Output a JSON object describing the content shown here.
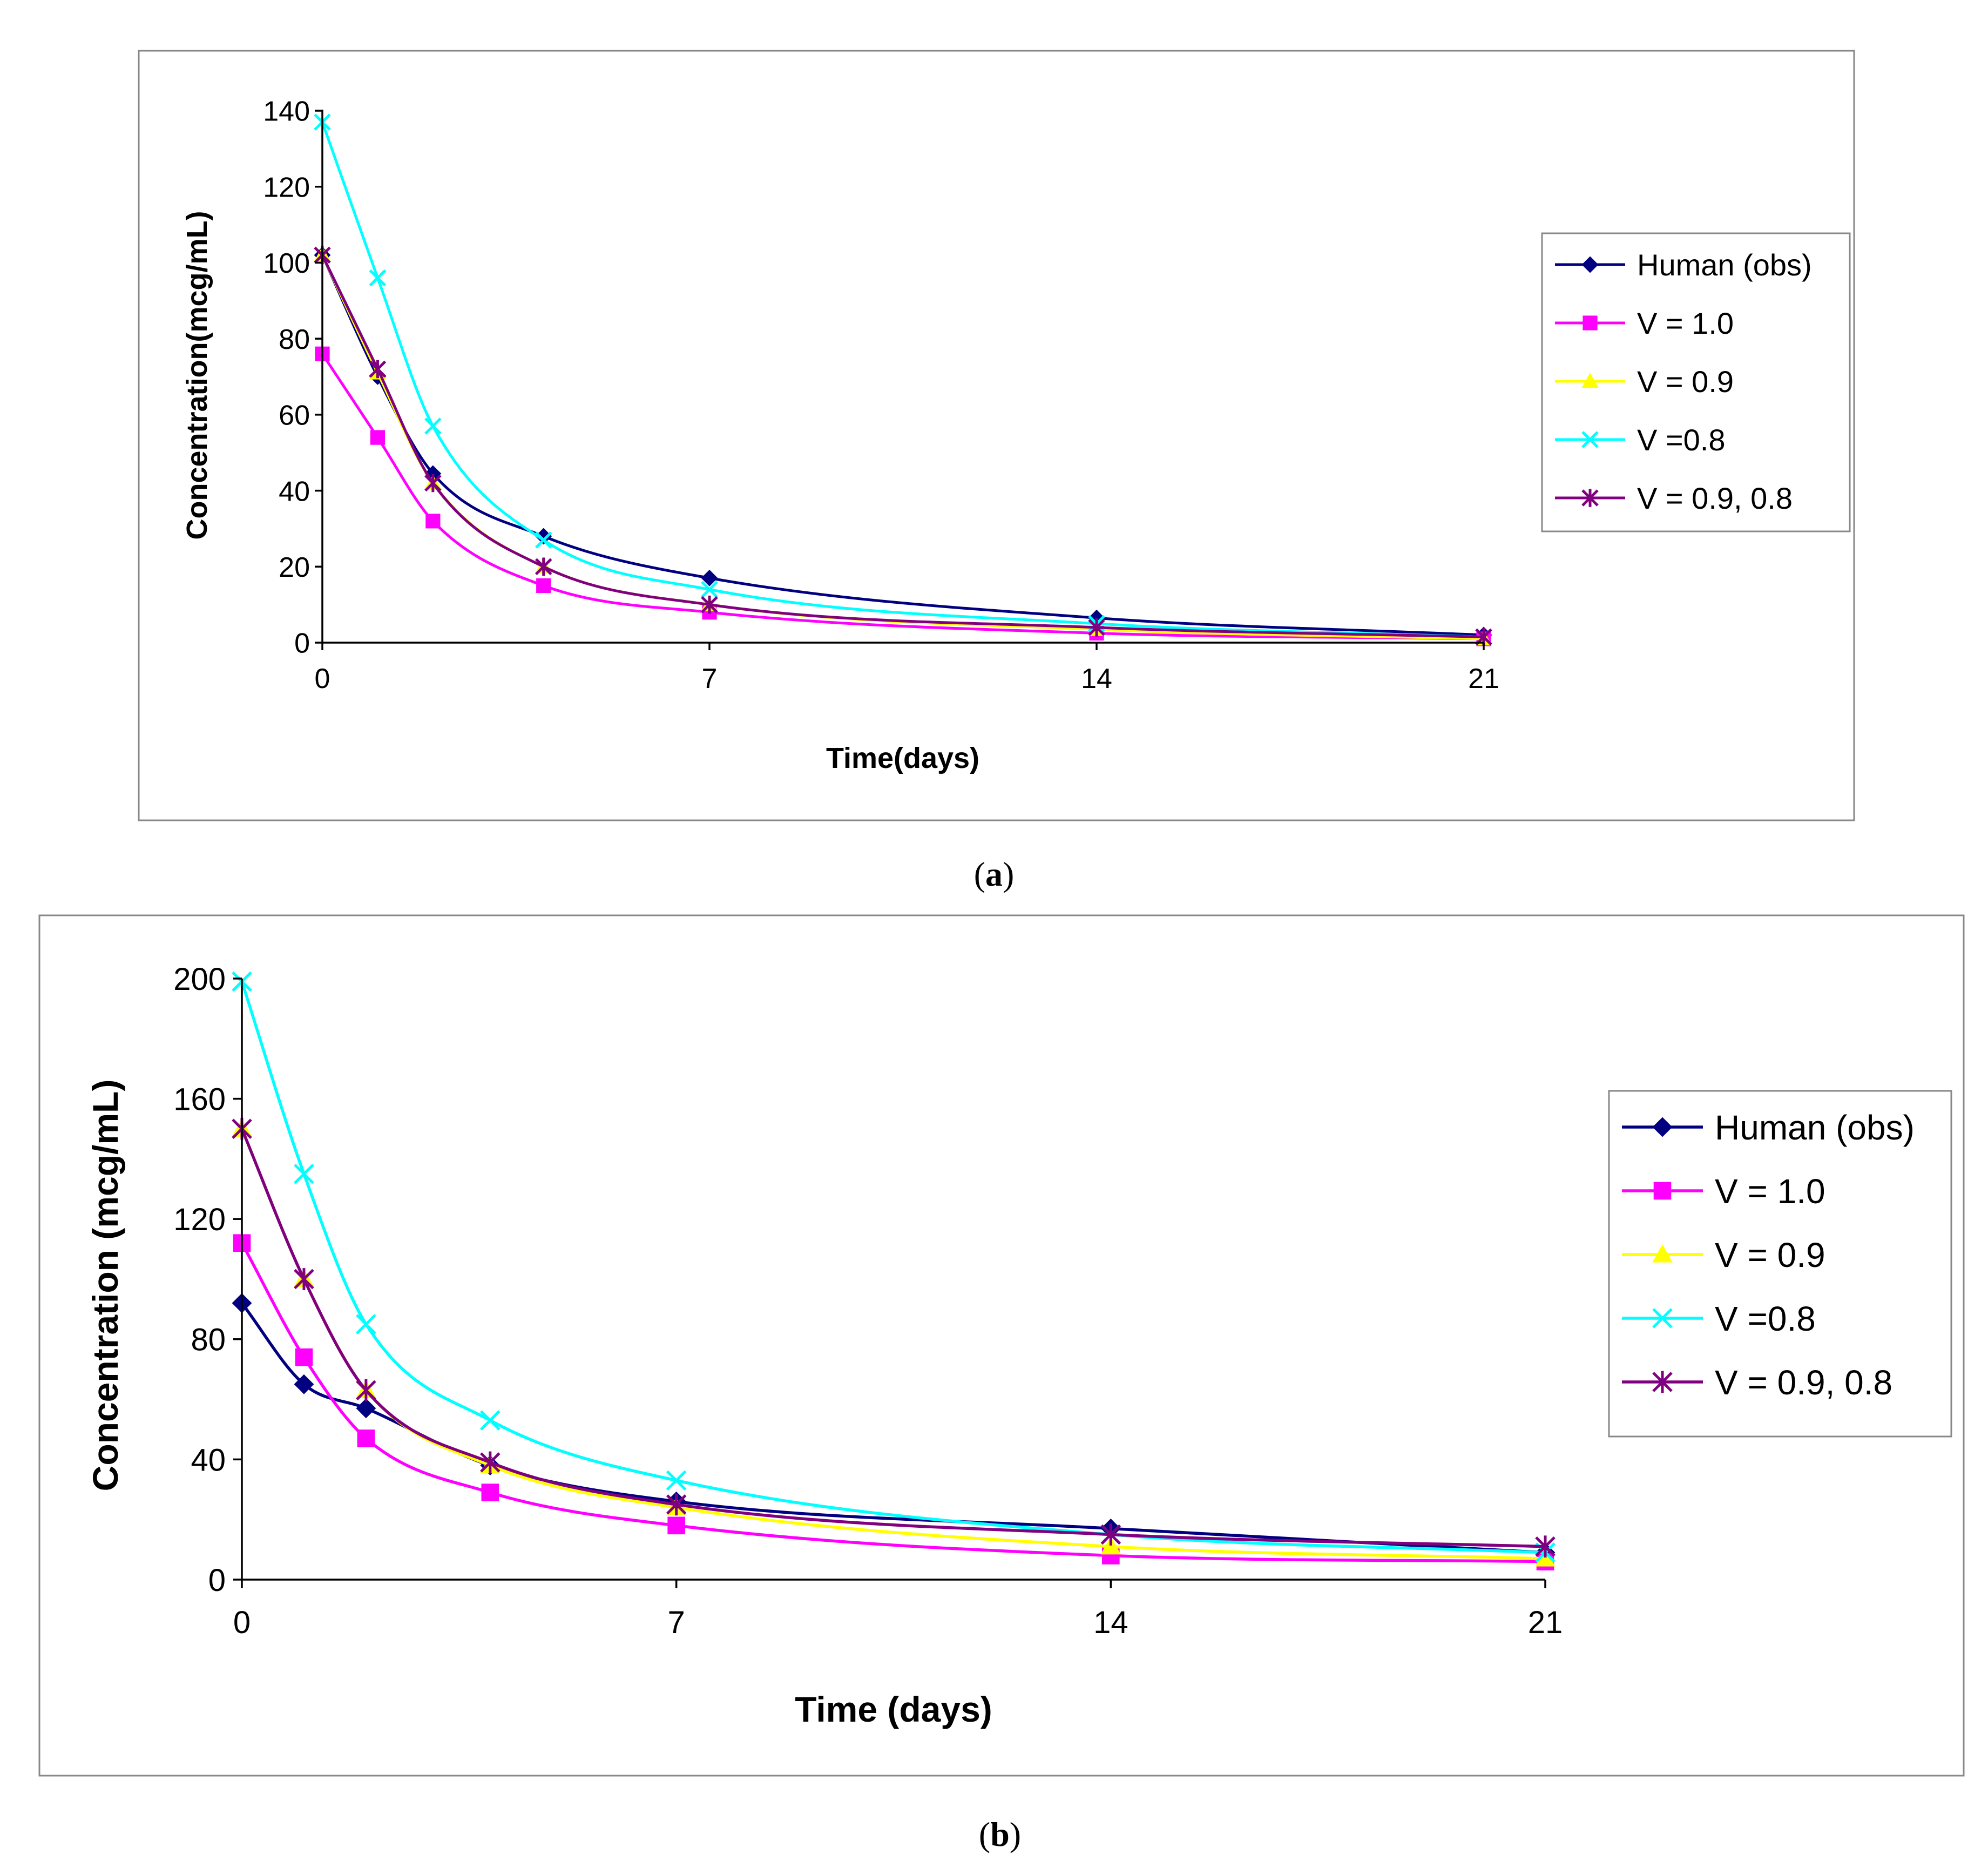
{
  "chart_data": [
    {
      "type": "line",
      "panel": "a",
      "xlabel": "Time(days)",
      "ylabel": "Concentration(mcg/mL)",
      "xlim": [
        0,
        21
      ],
      "ylim": [
        0,
        140
      ],
      "xticks": [
        0,
        7,
        14,
        21
      ],
      "yticks": [
        0,
        20,
        40,
        60,
        80,
        100,
        120,
        140
      ],
      "grid": false,
      "legend_position": "right",
      "series": [
        {
          "name": "Human (obs)",
          "color": "#000080",
          "marker": "diamond",
          "x": [
            0,
            1,
            2,
            4,
            7,
            14,
            21
          ],
          "y": [
            102,
            70,
            44.5,
            28,
            17,
            6.5,
            2
          ]
        },
        {
          "name": "V = 1.0",
          "color": "#ff00ff",
          "marker": "square",
          "x": [
            0,
            1,
            2,
            4,
            7,
            14,
            21
          ],
          "y": [
            76,
            54,
            32,
            15,
            8,
            2.5,
            1
          ]
        },
        {
          "name": "V = 0.9",
          "color": "#ffff00",
          "marker": "triangle",
          "x": [
            0,
            1,
            2,
            4,
            7,
            14,
            21
          ],
          "y": [
            102,
            71,
            42,
            20,
            10,
            3.5,
            1
          ]
        },
        {
          "name": "V =0.8",
          "color": "#00ffff",
          "marker": "x",
          "x": [
            0,
            1,
            2,
            4,
            7,
            14,
            21
          ],
          "y": [
            137,
            96,
            57,
            27,
            14,
            5,
            1.5
          ]
        },
        {
          "name": "V = 0.9, 0.8",
          "color": "#800080",
          "marker": "star",
          "x": [
            0,
            1,
            2,
            4,
            7,
            14,
            21
          ],
          "y": [
            102,
            72,
            42,
            20,
            10,
            4,
            1.5
          ]
        }
      ]
    },
    {
      "type": "line",
      "panel": "b",
      "xlabel": "Time (days)",
      "ylabel": "Concentration (mcg/mL)",
      "xlim": [
        0,
        21
      ],
      "ylim": [
        0,
        200
      ],
      "xticks": [
        0,
        7,
        14,
        21
      ],
      "yticks": [
        0,
        40,
        80,
        120,
        160,
        200
      ],
      "grid": false,
      "legend_position": "right",
      "series": [
        {
          "name": "Human (obs)",
          "color": "#000080",
          "marker": "diamond",
          "x": [
            0,
            1,
            2,
            4,
            7,
            14,
            21
          ],
          "y": [
            92,
            65,
            57,
            38,
            26,
            17,
            9
          ]
        },
        {
          "name": "V = 1.0",
          "color": "#ff00ff",
          "marker": "square",
          "x": [
            0,
            1,
            2,
            4,
            7,
            14,
            21
          ],
          "y": [
            112,
            74,
            47,
            29,
            18,
            8,
            6
          ]
        },
        {
          "name": "V = 0.9",
          "color": "#ffff00",
          "marker": "triangle",
          "x": [
            0,
            1,
            2,
            4,
            7,
            14,
            21
          ],
          "y": [
            150,
            100,
            63,
            38,
            24,
            11,
            7
          ]
        },
        {
          "name": "V =0.8",
          "color": "#00ffff",
          "marker": "x",
          "x": [
            0,
            1,
            2,
            4,
            7,
            14,
            21
          ],
          "y": [
            199,
            135,
            85,
            53,
            33,
            15,
            9
          ]
        },
        {
          "name": "V = 0.9, 0.8",
          "color": "#800080",
          "marker": "star",
          "x": [
            0,
            1,
            2,
            4,
            7,
            14,
            21
          ],
          "y": [
            150,
            100,
            63,
            39,
            25,
            15,
            11
          ]
        }
      ]
    }
  ],
  "captions": {
    "a": {
      "open": "(",
      "letter": "a",
      "close": ")"
    },
    "b": {
      "open": "(",
      "letter": "b",
      "close": ")"
    }
  }
}
